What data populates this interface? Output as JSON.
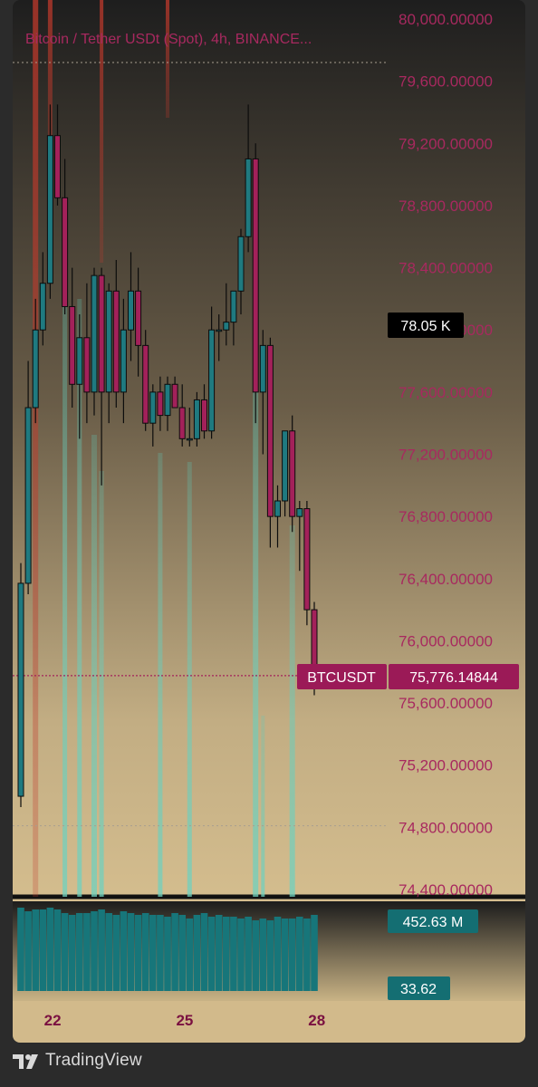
{
  "header": {
    "symbol_title": "Bitcoin / Tether USDt (Spot), 4h, BINANCE..."
  },
  "footer": {
    "brand": "TradingView"
  },
  "price_badges": {
    "crosshair_label": "78.05 K",
    "symbol_tag": "BTCUSDT",
    "last_price": "75,776.14844"
  },
  "volume_badges": {
    "volume": "452.63 M",
    "oscillator": "33.62"
  },
  "colors": {
    "bull": "#1f7a80",
    "bear": "#a3215a",
    "price_text": "#a8295f",
    "badge_teal": "#146e72",
    "badge_crimson": "#9b1a57",
    "bg_top": "#1f1f1f",
    "bg_bottom": "#d4bd8e"
  },
  "chart_data": {
    "type": "candlestick",
    "title": "Bitcoin / Tether USDt (Spot), 4h, BINANCE...",
    "timeframe": "4h",
    "ylim": [
      74400,
      80000
    ],
    "y_ticks": [
      "80,000.00000",
      "79,600.00000",
      "79,200.00000",
      "78,800.00000",
      "78,400.00000",
      "78,000.00000",
      "77,600.00000",
      "77,200.00000",
      "76,800.00000",
      "76,400.00000",
      "76,000.00000",
      "75,600.00000",
      "75,200.00000",
      "74,800.00000",
      "74,400.00000"
    ],
    "y_tick_values": [
      80000,
      79600,
      79200,
      78800,
      78400,
      78000,
      77600,
      77200,
      76800,
      76400,
      76000,
      75600,
      75200,
      74800,
      74400
    ],
    "x_ticks": [
      {
        "label": "22",
        "index": 1
      },
      {
        "label": "25",
        "index": 19
      },
      {
        "label": "28",
        "index": 37
      }
    ],
    "last_price": 75776.14844,
    "crosshair_price": 78050,
    "dotted_levels": [
      79720,
      74810
    ],
    "candles": [
      {
        "o": 75000,
        "h": 76500,
        "l": 74930,
        "c": 76370
      },
      {
        "o": 76370,
        "h": 77800,
        "l": 76300,
        "c": 77500
      },
      {
        "o": 77500,
        "h": 78200,
        "l": 77400,
        "c": 78000
      },
      {
        "o": 78000,
        "h": 78500,
        "l": 77900,
        "c": 78300
      },
      {
        "o": 78300,
        "h": 79450,
        "l": 78200,
        "c": 79250
      },
      {
        "o": 79250,
        "h": 79450,
        "l": 78800,
        "c": 78850
      },
      {
        "o": 78850,
        "h": 79100,
        "l": 78100,
        "c": 78150
      },
      {
        "o": 78150,
        "h": 78400,
        "l": 77500,
        "c": 77650
      },
      {
        "o": 77650,
        "h": 78100,
        "l": 77300,
        "c": 77950
      },
      {
        "o": 77950,
        "h": 78300,
        "l": 77400,
        "c": 77600
      },
      {
        "o": 77600,
        "h": 78400,
        "l": 77450,
        "c": 78350
      },
      {
        "o": 78350,
        "h": 78400,
        "l": 77000,
        "c": 77600
      },
      {
        "o": 77600,
        "h": 78300,
        "l": 77400,
        "c": 78250
      },
      {
        "o": 78250,
        "h": 78450,
        "l": 77500,
        "c": 77600
      },
      {
        "o": 77600,
        "h": 78200,
        "l": 77400,
        "c": 78000
      },
      {
        "o": 78000,
        "h": 78500,
        "l": 77800,
        "c": 78250
      },
      {
        "o": 78250,
        "h": 78400,
        "l": 77700,
        "c": 77900
      },
      {
        "o": 77900,
        "h": 78000,
        "l": 77350,
        "c": 77400
      },
      {
        "o": 77400,
        "h": 77650,
        "l": 77250,
        "c": 77600
      },
      {
        "o": 77600,
        "h": 77700,
        "l": 77350,
        "c": 77450
      },
      {
        "o": 77450,
        "h": 77700,
        "l": 77350,
        "c": 77650
      },
      {
        "o": 77650,
        "h": 77700,
        "l": 77500,
        "c": 77500
      },
      {
        "o": 77500,
        "h": 77650,
        "l": 77250,
        "c": 77300
      },
      {
        "o": 77300,
        "h": 77500,
        "l": 77250,
        "c": 77300
      },
      {
        "o": 77300,
        "h": 77600,
        "l": 77250,
        "c": 77550
      },
      {
        "o": 77550,
        "h": 77650,
        "l": 77300,
        "c": 77350
      },
      {
        "o": 77350,
        "h": 78150,
        "l": 77300,
        "c": 78000
      },
      {
        "o": 78000,
        "h": 78100,
        "l": 77800,
        "c": 78000
      },
      {
        "o": 78000,
        "h": 78300,
        "l": 77900,
        "c": 78050
      },
      {
        "o": 78050,
        "h": 78200,
        "l": 77900,
        "c": 78250
      },
      {
        "o": 78250,
        "h": 78650,
        "l": 78100,
        "c": 78600
      },
      {
        "o": 78600,
        "h": 79450,
        "l": 78500,
        "c": 79100
      },
      {
        "o": 79100,
        "h": 79200,
        "l": 77400,
        "c": 77600
      },
      {
        "o": 77600,
        "h": 78000,
        "l": 77200,
        "c": 77900
      },
      {
        "o": 77900,
        "h": 77950,
        "l": 76600,
        "c": 76800
      },
      {
        "o": 76800,
        "h": 77000,
        "l": 76600,
        "c": 76900
      },
      {
        "o": 76900,
        "h": 77350,
        "l": 76800,
        "c": 77350
      },
      {
        "o": 77350,
        "h": 77450,
        "l": 76700,
        "c": 76800
      },
      {
        "o": 76800,
        "h": 76900,
        "l": 76450,
        "c": 76850
      },
      {
        "o": 76850,
        "h": 76900,
        "l": 76100,
        "c": 76200
      },
      {
        "o": 76200,
        "h": 76250,
        "l": 75650,
        "c": 75776
      }
    ]
  }
}
